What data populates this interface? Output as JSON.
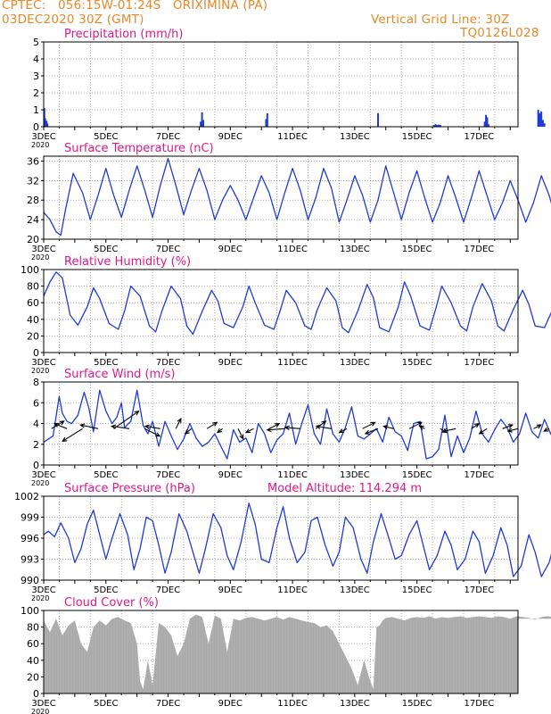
{
  "header": {
    "line1": "CPTEC:   056:15W-01:24S   ORIXIMINA (PA)",
    "line2": "03DEC2020 30Z (GMT)",
    "right1": "Vertical Grid Line: 30Z",
    "right2": "TQ0126L028"
  },
  "colors": {
    "header": "#e8882a",
    "title": "#e0198b",
    "line": "#1f3bd6",
    "cloud": "#a9a9a9",
    "arrow": "#000000",
    "grid": "#999999"
  },
  "x_ticks": [
    "3DEC",
    "5DEC",
    "7DEC",
    "9DEC",
    "11DEC",
    "13DEC",
    "15DEC",
    "17DEC"
  ],
  "x_sublabel": "2020",
  "chart_data": [
    {
      "id": "precip",
      "type": "bar",
      "title": "Precipitation (mm/h)",
      "ylim": [
        0,
        5
      ],
      "yticks": [
        0,
        1,
        2,
        3,
        4,
        5
      ],
      "x_unit": "day index (0 = 3DEC 00Z)",
      "x": [
        0.02,
        0.05,
        0.09,
        0.12,
        5.05,
        5.09,
        5.13,
        7.15,
        7.19,
        10.75,
        12.55,
        12.6,
        12.65,
        12.7,
        12.75,
        14.18,
        14.22,
        14.26,
        14.3,
        15.9,
        15.95,
        16.0,
        16.05,
        16.1
      ],
      "values": [
        1.1,
        0.5,
        0.35,
        0.2,
        0.3,
        0.85,
        0.4,
        0.45,
        0.8,
        0.8,
        0.1,
        0.15,
        0.1,
        0.12,
        0.1,
        0.3,
        0.7,
        0.55,
        0.15,
        1.0,
        0.8,
        0.9,
        0.4,
        0.2
      ]
    },
    {
      "id": "temp",
      "type": "line",
      "title": "Surface Temperature (nC)",
      "ylim": [
        20,
        37
      ],
      "yticks": [
        20,
        24,
        28,
        32,
        36
      ],
      "x_unit": "day index",
      "x": [
        0,
        0.2,
        0.4,
        0.55,
        0.7,
        0.95,
        1.25,
        1.5,
        1.75,
        2.0,
        2.25,
        2.5,
        2.75,
        3.0,
        3.25,
        3.5,
        3.75,
        4.0,
        4.25,
        4.5,
        4.75,
        5.0,
        5.25,
        5.5,
        5.75,
        6.0,
        6.25,
        6.5,
        6.75,
        7.0,
        7.25,
        7.5,
        7.75,
        8.0,
        8.25,
        8.5,
        8.75,
        9.0,
        9.25,
        9.5,
        9.75,
        10.0,
        10.25,
        10.5,
        10.75,
        11.0,
        11.25,
        11.5,
        11.75,
        12.0,
        12.25,
        12.5,
        12.75,
        13.0,
        13.25,
        13.5,
        13.75,
        14.0,
        14.25,
        14.5,
        14.75,
        15.0,
        15.25,
        15.5,
        15.75,
        16.0,
        16.25,
        16.5,
        16.75,
        17.0,
        17.25
      ],
      "y": [
        25.5,
        24.0,
        21.5,
        20.8,
        26.0,
        33.5,
        29.5,
        24.0,
        29.0,
        34.5,
        29.0,
        24.5,
        30.0,
        35.0,
        30.0,
        24.5,
        31.0,
        36.5,
        31.0,
        25.0,
        30.0,
        34.5,
        30.0,
        24.0,
        28.0,
        31.0,
        28.0,
        24.0,
        28.5,
        33.0,
        29.5,
        24.0,
        29.5,
        34.5,
        30.0,
        24.0,
        28.5,
        34.5,
        30.5,
        23.5,
        28.0,
        33.0,
        29.0,
        23.5,
        28.0,
        35.0,
        29.5,
        24.0,
        29.5,
        34.0,
        28.5,
        23.5,
        27.5,
        33.0,
        28.5,
        23.5,
        28.5,
        34.0,
        29.0,
        24.0,
        27.5,
        32.0,
        28.0,
        23.5,
        27.5,
        33.0,
        29.0,
        23.5,
        28.5,
        33.5,
        32.0
      ]
    },
    {
      "id": "rh",
      "type": "line",
      "title": "Relative Humidity (%)",
      "ylim": [
        0,
        100
      ],
      "yticks": [
        0,
        20,
        40,
        60,
        80,
        100
      ],
      "x_unit": "day index",
      "x": [
        0,
        0.2,
        0.4,
        0.6,
        0.85,
        1.1,
        1.4,
        1.6,
        1.8,
        2.1,
        2.4,
        2.6,
        2.8,
        3.1,
        3.4,
        3.6,
        3.8,
        4.1,
        4.4,
        4.6,
        4.8,
        5.1,
        5.4,
        5.6,
        5.8,
        6.1,
        6.4,
        6.6,
        6.8,
        7.1,
        7.4,
        7.6,
        7.8,
        8.1,
        8.4,
        8.6,
        8.8,
        9.1,
        9.4,
        9.6,
        9.8,
        10.1,
        10.4,
        10.6,
        10.8,
        11.1,
        11.4,
        11.6,
        11.8,
        12.1,
        12.4,
        12.6,
        12.8,
        13.1,
        13.4,
        13.6,
        13.8,
        14.1,
        14.4,
        14.6,
        14.8,
        15.1,
        15.4,
        15.6,
        15.8,
        16.1,
        16.4,
        16.6,
        16.8,
        17.1,
        17.25
      ],
      "y": [
        68,
        85,
        97,
        90,
        45,
        33,
        55,
        78,
        65,
        35,
        28,
        50,
        80,
        68,
        32,
        25,
        50,
        80,
        65,
        32,
        22,
        50,
        75,
        62,
        35,
        30,
        55,
        80,
        60,
        33,
        28,
        50,
        75,
        60,
        32,
        28,
        52,
        78,
        62,
        30,
        24,
        50,
        82,
        66,
        30,
        25,
        55,
        85,
        68,
        32,
        27,
        52,
        80,
        60,
        32,
        26,
        55,
        83,
        62,
        32,
        26,
        52,
        75,
        58,
        32,
        30,
        55,
        78,
        60,
        36,
        40
      ]
    },
    {
      "id": "wind",
      "type": "line",
      "title": "Surface Wind (m/s)",
      "ylim": [
        0,
        8
      ],
      "yticks": [
        0,
        2,
        4,
        6,
        8
      ],
      "x_unit": "day index",
      "x": [
        0,
        0.3,
        0.5,
        0.6,
        0.75,
        0.9,
        1.1,
        1.3,
        1.45,
        1.6,
        1.8,
        2.0,
        2.2,
        2.35,
        2.5,
        2.6,
        2.8,
        3.0,
        3.2,
        3.35,
        3.5,
        3.7,
        3.9,
        4.1,
        4.3,
        4.5,
        4.7,
        4.9,
        5.1,
        5.3,
        5.5,
        5.7,
        5.9,
        6.1,
        6.3,
        6.5,
        6.7,
        6.9,
        7.1,
        7.3,
        7.5,
        7.7,
        7.9,
        8.1,
        8.3,
        8.5,
        8.7,
        8.9,
        9.1,
        9.3,
        9.5,
        9.7,
        9.9,
        10.1,
        10.3,
        10.5,
        10.7,
        10.9,
        11.1,
        11.3,
        11.5,
        11.7,
        11.9,
        12.1,
        12.3,
        12.5,
        12.7,
        12.9,
        13.1,
        13.3,
        13.5,
        13.7,
        13.9,
        14.1,
        14.3,
        14.5,
        14.7,
        14.9,
        15.1,
        15.3,
        15.5,
        15.7,
        15.9,
        16.1,
        16.3,
        16.5,
        16.7,
        16.9,
        17.1,
        17.25
      ],
      "y": [
        2.2,
        2.8,
        6.6,
        5.0,
        4.2,
        4.0,
        4.8,
        7.0,
        5.5,
        3.2,
        7.2,
        5.2,
        4.0,
        4.6,
        6.0,
        3.6,
        4.2,
        7.2,
        3.8,
        3.0,
        4.2,
        1.8,
        4.2,
        2.8,
        1.5,
        2.5,
        4.0,
        2.6,
        1.8,
        2.2,
        3.0,
        1.8,
        0.6,
        3.4,
        2.2,
        2.6,
        1.2,
        4.0,
        3.0,
        1.2,
        2.4,
        3.0,
        5.0,
        2.0,
        4.0,
        5.8,
        3.0,
        2.0,
        5.4,
        3.0,
        2.2,
        3.6,
        5.6,
        2.8,
        2.5,
        3.0,
        3.5,
        2.2,
        4.6,
        3.2,
        2.8,
        1.4,
        4.0,
        4.2,
        0.6,
        0.8,
        1.5,
        4.8,
        0.8,
        2.8,
        1.2,
        2.6,
        5.2,
        3.0,
        2.2,
        3.4,
        4.4,
        3.6,
        2.2,
        3.0,
        5.0,
        3.2,
        2.6,
        4.4,
        3.0,
        2.4,
        4.0,
        3.8,
        2.0,
        0.8
      ]
    },
    {
      "id": "pressure",
      "type": "line",
      "title": "Surface Pressure (hPa)",
      "annotation": "Model Altitude: 114.294 m",
      "ylim": [
        990,
        1002
      ],
      "yticks": [
        990,
        993,
        996,
        999,
        1002
      ],
      "x_unit": "day index",
      "x": [
        0,
        0.15,
        0.35,
        0.55,
        0.8,
        1.0,
        1.2,
        1.4,
        1.6,
        1.8,
        2.0,
        2.2,
        2.45,
        2.7,
        2.9,
        3.1,
        3.3,
        3.5,
        3.7,
        3.9,
        4.1,
        4.35,
        4.6,
        4.8,
        5.0,
        5.2,
        5.45,
        5.7,
        5.9,
        6.1,
        6.35,
        6.6,
        6.8,
        7.0,
        7.25,
        7.5,
        7.7,
        7.9,
        8.15,
        8.4,
        8.6,
        8.8,
        9.05,
        9.3,
        9.5,
        9.7,
        9.95,
        10.2,
        10.4,
        10.6,
        10.85,
        11.1,
        11.3,
        11.5,
        11.75,
        12.0,
        12.2,
        12.4,
        12.65,
        12.9,
        13.1,
        13.3,
        13.55,
        13.8,
        14.0,
        14.2,
        14.45,
        14.7,
        14.9,
        15.1,
        15.35,
        15.6,
        15.8,
        16.0,
        16.25,
        16.5,
        16.7,
        16.9,
        17.15,
        17.25
      ],
      "y": [
        996.5,
        997.0,
        996.2,
        998.2,
        996.0,
        992.5,
        994.5,
        998.0,
        1000.0,
        996.5,
        993.0,
        996.0,
        999.5,
        996.5,
        991.5,
        994.5,
        999.0,
        998.5,
        995.0,
        991.0,
        994.0,
        999.5,
        997.0,
        994.0,
        991.0,
        994.5,
        999.5,
        997.5,
        993.5,
        991.5,
        995.5,
        1001.0,
        998.0,
        993.0,
        992.5,
        997.5,
        1000.5,
        996.0,
        992.5,
        994.0,
        998.5,
        999.0,
        995.0,
        992.0,
        994.0,
        999.0,
        997.5,
        993.0,
        991.0,
        995.5,
        999.5,
        996.0,
        993.0,
        993.5,
        996.5,
        998.5,
        995.0,
        991.5,
        993.5,
        997.0,
        995.0,
        991.5,
        993.0,
        997.0,
        995.5,
        991.0,
        993.5,
        997.5,
        995.0,
        990.5,
        992.0,
        996.5,
        994.0,
        990.5,
        992.5,
        996.5,
        994.0,
        990.5,
        992.0,
        993.0
      ]
    },
    {
      "id": "cloud",
      "type": "area",
      "title": "Cloud Cover (%)",
      "ylim": [
        0,
        100
      ],
      "yticks": [
        0,
        20,
        40,
        60,
        80,
        100
      ],
      "x_unit": "day index",
      "x": [
        0,
        0.2,
        0.4,
        0.6,
        0.8,
        1.0,
        1.2,
        1.4,
        1.6,
        1.8,
        2.0,
        2.2,
        2.4,
        2.6,
        2.8,
        3.0,
        3.1,
        3.2,
        3.35,
        3.5,
        3.7,
        3.9,
        4.1,
        4.3,
        4.5,
        4.7,
        4.9,
        5.1,
        5.3,
        5.5,
        5.7,
        5.9,
        6.1,
        6.3,
        6.5,
        6.7,
        6.9,
        7.1,
        7.3,
        7.5,
        7.7,
        7.9,
        8.1,
        8.3,
        8.5,
        8.7,
        8.9,
        9.1,
        9.3,
        9.5,
        9.7,
        9.9,
        10.1,
        10.3,
        10.5,
        10.6,
        10.7,
        10.8,
        10.9,
        11.0,
        11.2,
        11.4,
        11.6,
        11.8,
        12.0,
        12.2,
        12.4,
        12.6,
        12.8,
        13.0,
        13.2,
        13.4,
        13.6,
        13.8,
        14.0,
        14.2,
        14.4,
        14.6,
        14.8,
        15.0,
        15.2,
        15.4,
        15.6,
        15.8,
        16.0,
        16.2,
        16.4,
        16.6,
        16.8,
        17.0,
        17.25
      ],
      "y": [
        88,
        74,
        90,
        70,
        82,
        88,
        60,
        50,
        80,
        88,
        82,
        90,
        92,
        88,
        85,
        60,
        15,
        5,
        40,
        10,
        85,
        80,
        70,
        45,
        60,
        90,
        95,
        92,
        60,
        94,
        90,
        50,
        90,
        88,
        91,
        92,
        90,
        88,
        90,
        92,
        89,
        92,
        90,
        88,
        86,
        85,
        80,
        82,
        75,
        60,
        45,
        30,
        10,
        40,
        15,
        5,
        80,
        82,
        88,
        91,
        92,
        90,
        88,
        91,
        92,
        91,
        93,
        90,
        92,
        91,
        92,
        93,
        91,
        92,
        93,
        92,
        91,
        93,
        92,
        90,
        93,
        92,
        91,
        89,
        92,
        93,
        92,
        90,
        92,
        91,
        90
      ]
    }
  ],
  "wind_arrows": {
    "x": [
      0.25,
      0.75,
      1.25,
      1.75,
      2.25,
      2.75,
      3.25,
      3.75,
      4.25,
      4.75,
      5.25,
      5.75,
      6.25,
      6.75,
      7.25,
      7.75,
      8.25,
      8.75,
      9.25,
      9.75,
      10.25,
      10.75,
      11.25,
      11.75,
      12.25,
      12.75,
      13.25,
      13.75,
      14.25,
      14.75,
      15.25,
      15.75,
      16.25,
      16.75,
      17.15
    ],
    "u": [
      1.0,
      -1.0,
      -1.6,
      -1.4,
      2.0,
      -1.4,
      1.2,
      -1.2,
      0.4,
      -0.5,
      0.8,
      -0.4,
      0.4,
      -0.6,
      0.8,
      -1.4,
      -1.2,
      0.8,
      -1.2,
      -0.6,
      1.0,
      -1.0,
      -0.8,
      1.0,
      -0.4,
      0.5,
      -1.0,
      0.6,
      -0.6,
      0.8,
      -0.8,
      0.6,
      -0.4,
      0.4,
      -0.3
    ],
    "v": [
      0.6,
      0.4,
      -1.0,
      0.3,
      1.4,
      0.2,
      -0.6,
      0.2,
      0.8,
      -0.4,
      0.5,
      -0.3,
      -0.8,
      -0.3,
      0.4,
      -0.1,
      0.1,
      0.6,
      0.2,
      -0.3,
      0.5,
      -0.4,
      0.2,
      0.5,
      0.2,
      -0.3,
      -0.2,
      0.4,
      -0.4,
      0.3,
      -0.2,
      0.3,
      -0.2,
      0.2,
      0.0
    ]
  }
}
